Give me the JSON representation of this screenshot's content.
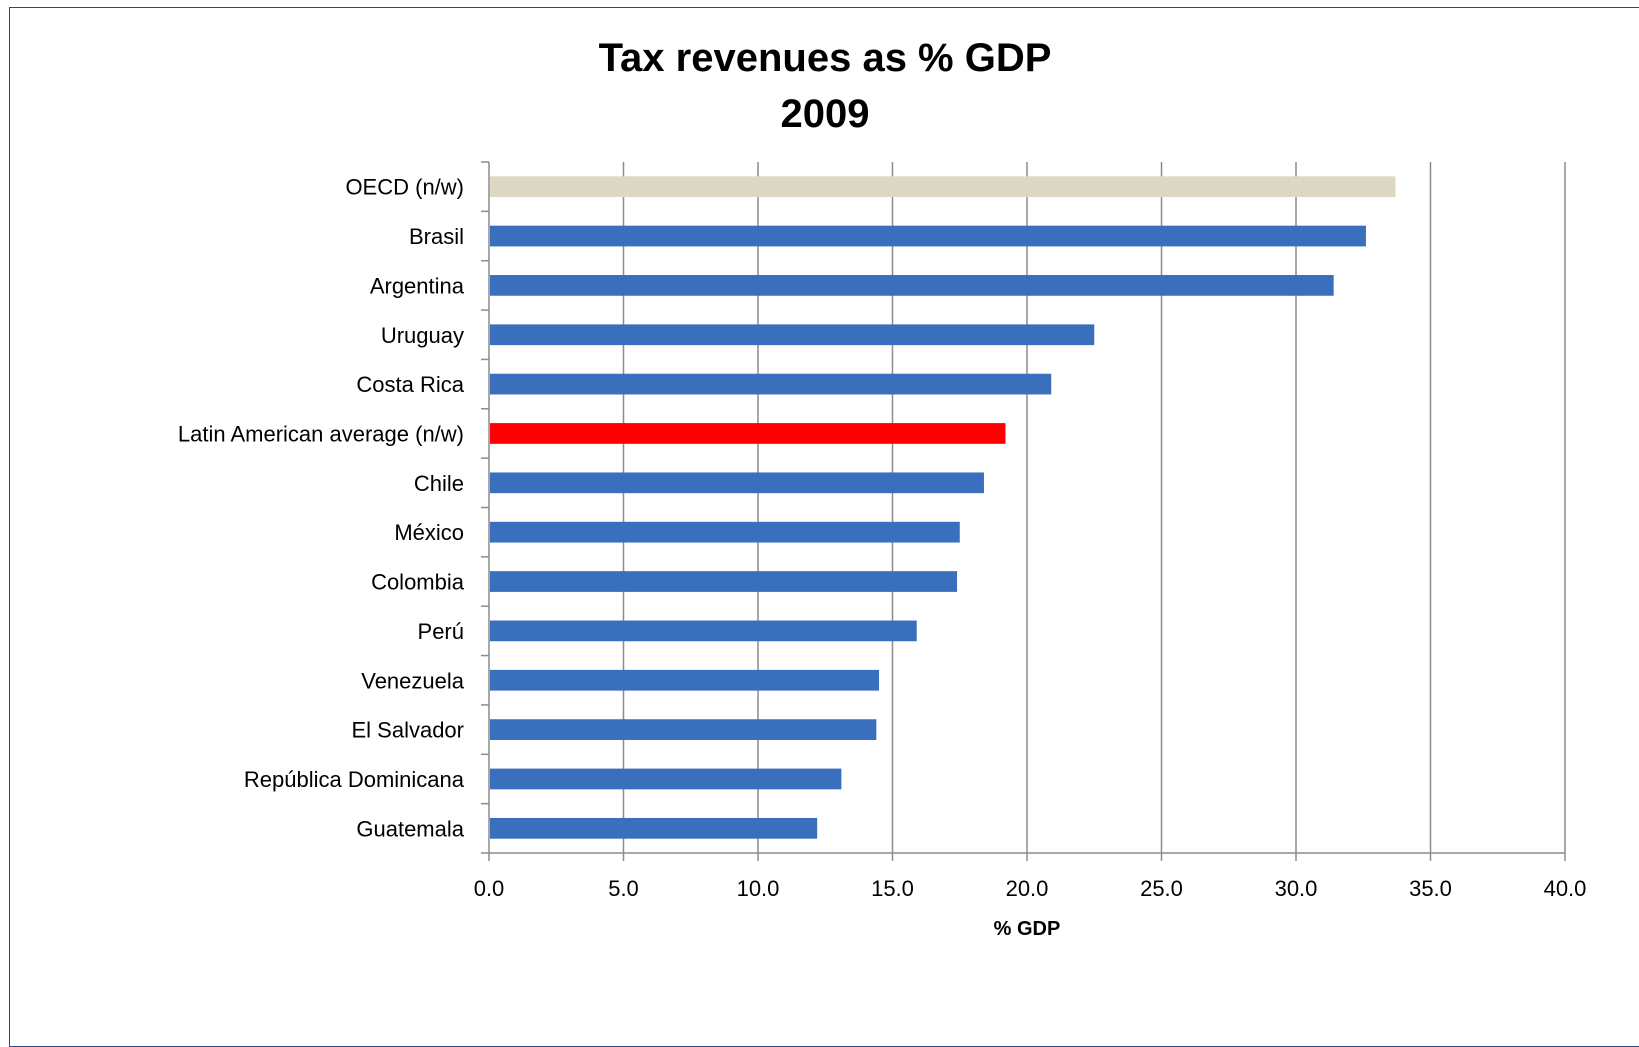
{
  "chart_data": {
    "type": "bar",
    "orientation": "horizontal",
    "title": "Tax revenues as % GDP\n2009",
    "xlabel": "% GDP",
    "ylabel": "",
    "xlim": [
      0,
      40
    ],
    "x_ticks": [
      "0.0",
      "5.0",
      "10.0",
      "15.0",
      "20.0",
      "25.0",
      "30.0",
      "35.0",
      "40.0"
    ],
    "grid": "vertical",
    "legend": "none",
    "categories": [
      "OECD (n/w)",
      "Brasil",
      "Argentina",
      "Uruguay",
      "Costa Rica",
      "Latin American average (n/w)",
      "Chile",
      "México",
      "Colombia",
      "Perú",
      "Venezuela",
      "El Salvador",
      "República Dominicana",
      "Guatemala"
    ],
    "values": [
      33.7,
      32.6,
      31.4,
      22.5,
      20.9,
      19.2,
      18.4,
      17.5,
      17.4,
      15.9,
      14.5,
      14.4,
      13.1,
      12.2
    ],
    "colors": {
      "default": "#3a6fbd",
      "OECD (n/w)": "#ddd8c3",
      "Latin American average (n/w)": "#ff0000"
    }
  }
}
